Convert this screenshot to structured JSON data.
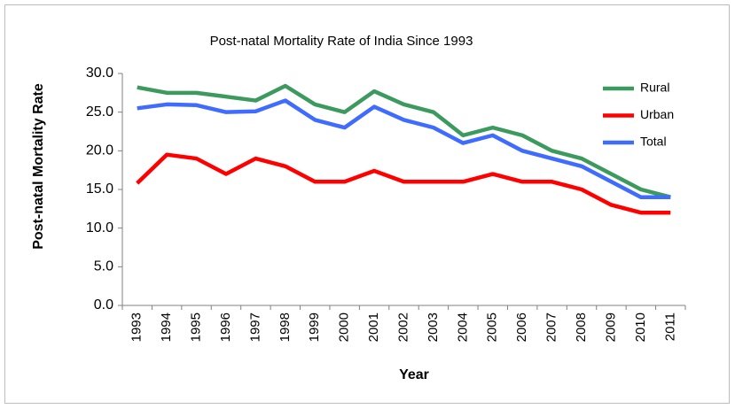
{
  "chart_data": {
    "type": "line",
    "title": "Post-natal Mortality Rate of India Since 1993",
    "xlabel": "Year",
    "ylabel": "Post-natal Mortality Rate",
    "categories": [
      "1993",
      "1994",
      "1995",
      "1996",
      "1997",
      "1998",
      "1999",
      "2000",
      "2001",
      "2002",
      "2003",
      "2004",
      "2005",
      "2006",
      "2007",
      "2008",
      "2009",
      "2010",
      "2011"
    ],
    "series": [
      {
        "name": "Rural",
        "color": "#3c9a5f",
        "values": [
          28.2,
          27.5,
          27.5,
          27.0,
          26.5,
          28.4,
          26.0,
          25.0,
          27.7,
          26.0,
          25.0,
          22.0,
          23.0,
          22.0,
          20.0,
          19.0,
          17.0,
          15.0,
          14.0
        ]
      },
      {
        "name": "Urban",
        "color": "#ff0000",
        "values": [
          15.8,
          19.5,
          19.0,
          17.0,
          19.0,
          18.0,
          16.0,
          16.0,
          17.4,
          16.0,
          16.0,
          16.0,
          17.0,
          16.0,
          16.0,
          15.0,
          13.0,
          12.0,
          12.0
        ]
      },
      {
        "name": "Total",
        "color": "#3f6cff",
        "values": [
          25.5,
          26.0,
          25.9,
          25.0,
          25.1,
          26.5,
          24.0,
          23.0,
          25.7,
          24.0,
          23.0,
          21.0,
          22.0,
          20.0,
          19.0,
          18.0,
          16.0,
          14.0,
          14.0
        ]
      }
    ],
    "ylim": [
      0,
      30
    ],
    "yticks": [
      {
        "value": 0,
        "label": "0.0"
      },
      {
        "value": 5,
        "label": "5.0"
      },
      {
        "value": 10,
        "label": "10.0"
      },
      {
        "value": 15,
        "label": "15.0"
      },
      {
        "value": 20,
        "label": "20.0"
      },
      {
        "value": 25,
        "label": "25.0"
      },
      {
        "value": 30,
        "label": "30.0"
      }
    ],
    "grid": false,
    "legend": "upper right"
  }
}
